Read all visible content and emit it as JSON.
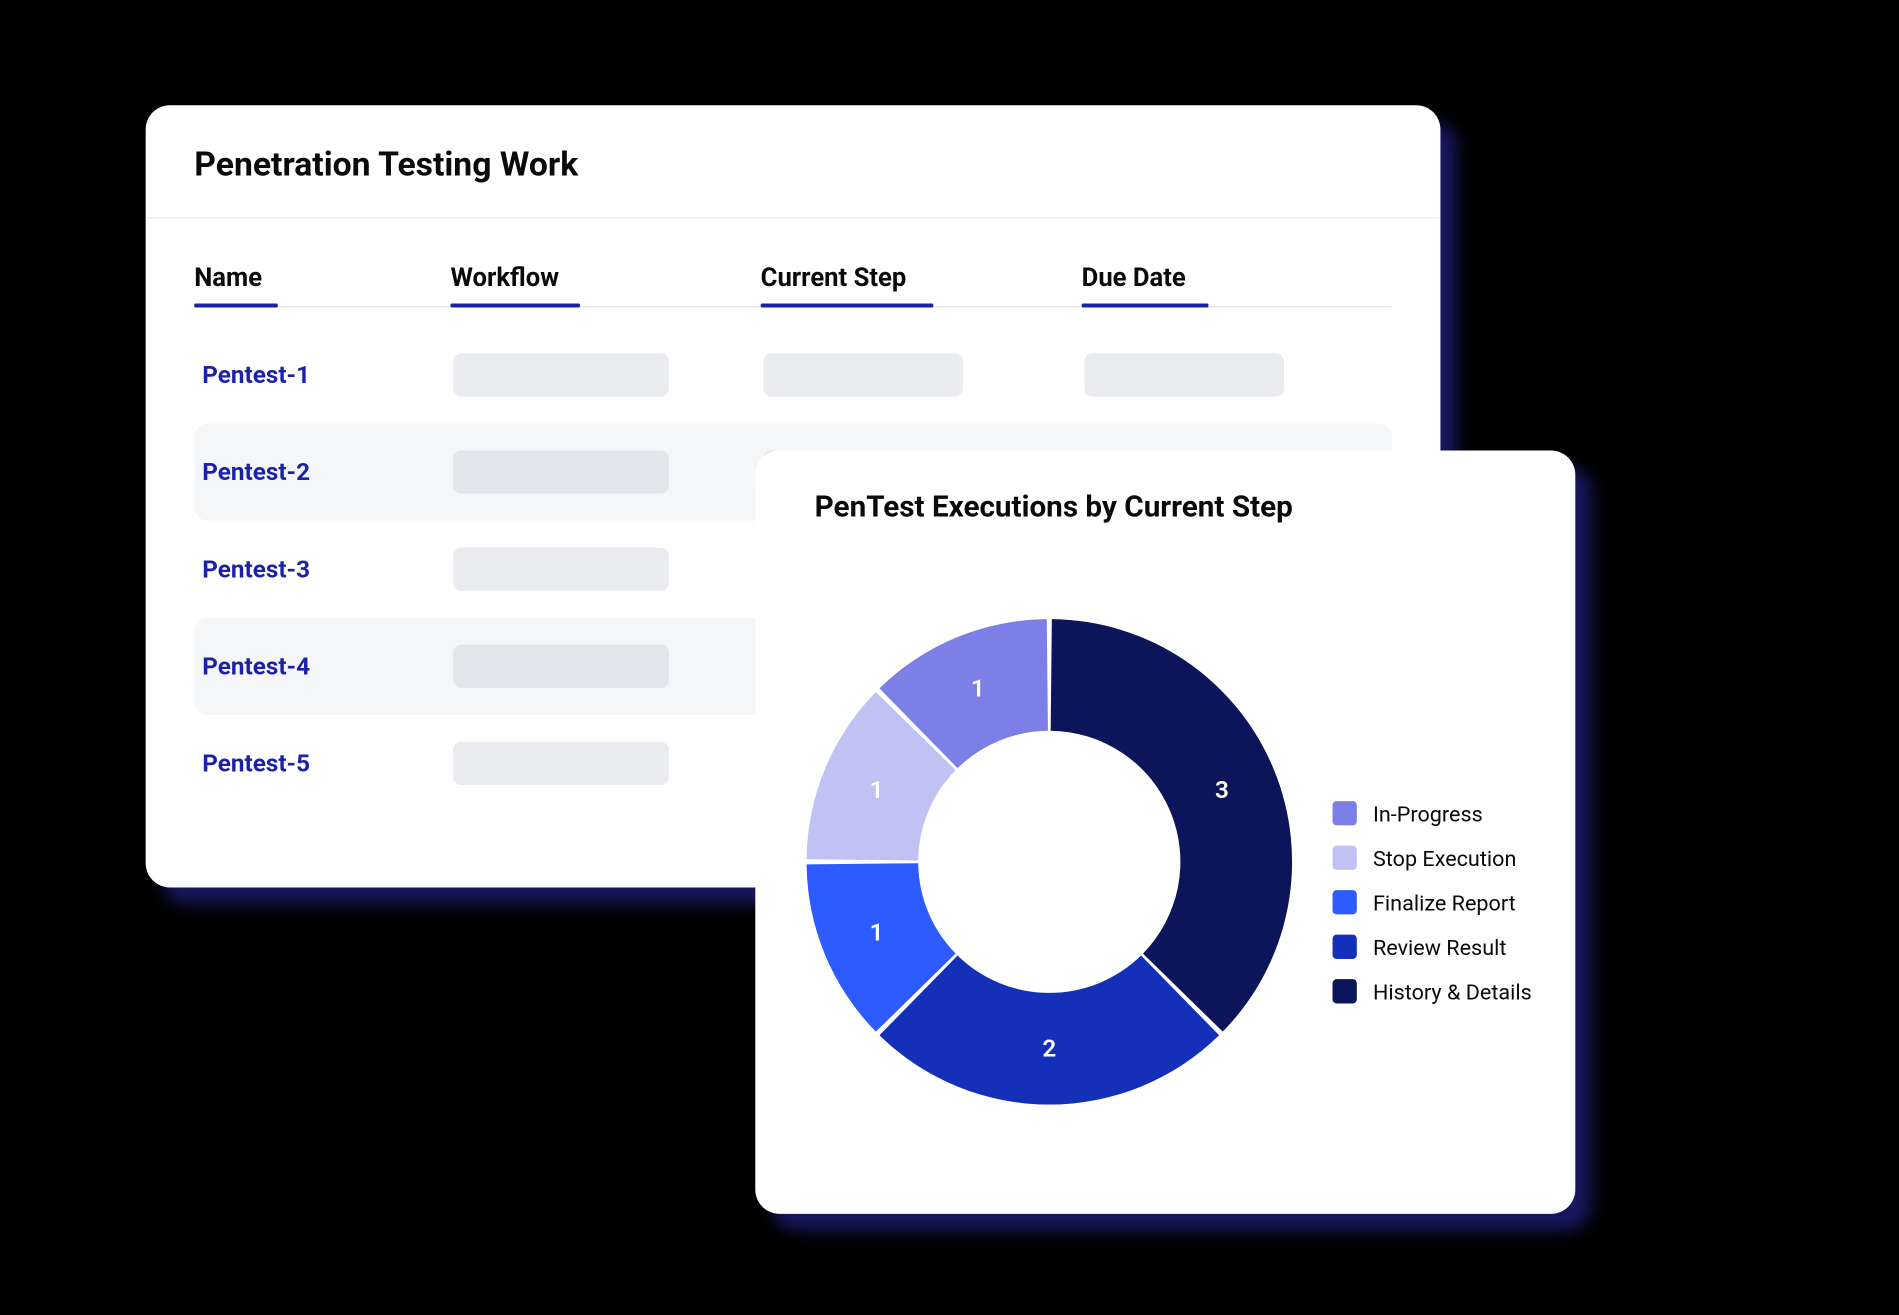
{
  "background_color": "#000000",
  "card_shadow_color": "#1a1a6a",
  "table": {
    "title": "Penetration Testing Work",
    "title_fontsize": 25,
    "header_underline_color": "#1c22a8",
    "row_link_color": "#1c22a8",
    "row_alt_bg": "#f5f6f8",
    "placeholder_color": "#e9ebef",
    "placeholder_color_alt": "#e2e5ea",
    "columns": [
      {
        "label": "Name",
        "underline_width": 62
      },
      {
        "label": "Workflow",
        "underline_width": 96
      },
      {
        "label": "Current Step",
        "underline_width": 128
      },
      {
        "label": "Due Date",
        "underline_width": 94
      }
    ],
    "placeholder_widths": {
      "workflow": 160,
      "step": 148,
      "due": 148
    },
    "rows": [
      {
        "name": "Pentest-1",
        "alt": false
      },
      {
        "name": "Pentest-2",
        "alt": true
      },
      {
        "name": "Pentest-3",
        "alt": false
      },
      {
        "name": "Pentest-4",
        "alt": true
      },
      {
        "name": "Pentest-5",
        "alt": false
      }
    ]
  },
  "chart": {
    "type": "donut",
    "title": "PenTest Executions by Current Step",
    "title_fontsize": 22,
    "background_color": "#ffffff",
    "inner_radius_ratio": 0.54,
    "gap_deg": 1.2,
    "start_angle_deg": 0,
    "label_color": "#ffffff",
    "label_fontsize": 18,
    "series": [
      {
        "label": "In-Progress",
        "value": 1,
        "color": "#7b7fe6"
      },
      {
        "label": "Stop Execution",
        "value": 1,
        "color": "#bfc2f2"
      },
      {
        "label": "Finalize Report",
        "value": 1,
        "color": "#2d5bff"
      },
      {
        "label": "Review Result",
        "value": 2,
        "color": "#1530b8"
      },
      {
        "label": "History & Details",
        "value": 3,
        "color": "#0c1559"
      }
    ],
    "legend_fontsize": 16
  }
}
